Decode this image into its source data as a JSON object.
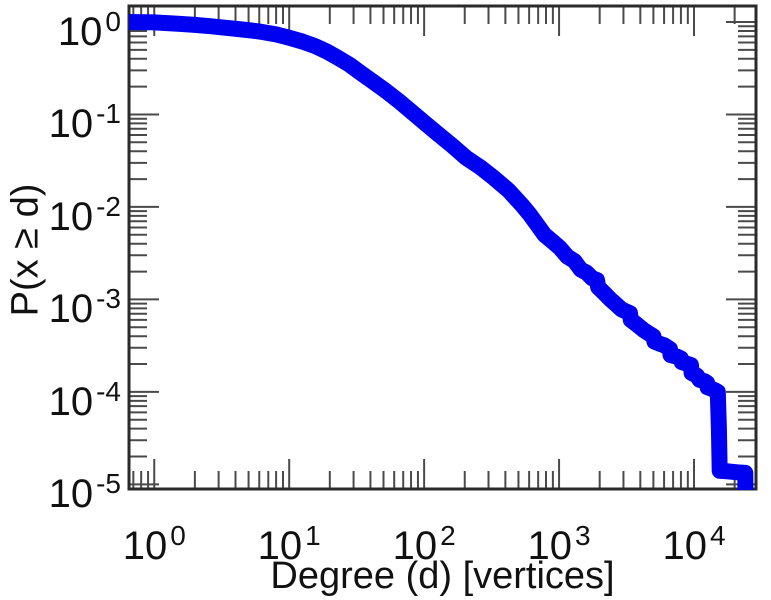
{
  "figure_title": "",
  "style": {
    "background": "#ffffff",
    "curve_color": "#0101f2",
    "frame_color": "#2a2a2a",
    "tick_color": "#4a4a4a",
    "text_color": "#111111"
  },
  "chart_data": {
    "type": "line",
    "title": "",
    "xlabel": "Degree (d) [vertices]",
    "ylabel": "P(x ≥ d)",
    "xscale": "log",
    "yscale": "log",
    "xlim": [
      0.65,
      28800
    ],
    "ylim": [
      8.9e-06,
      1.49
    ],
    "grid": false,
    "legend": false,
    "x_ticks": {
      "base": "10",
      "exponents": [
        0,
        1,
        2,
        3,
        4
      ],
      "values": [
        1,
        10,
        100,
        1000,
        10000
      ]
    },
    "y_ticks": {
      "base": "10",
      "exponents": [
        0,
        -1,
        -2,
        -3,
        -4,
        -5
      ],
      "values": [
        1,
        0.1,
        0.01,
        0.001,
        0.0001,
        1e-05
      ]
    },
    "series": [
      {
        "name": "degree-ccdf",
        "description": "Complementary cumulative distribution of vertex degree, P(x >= d), heavy-tailed power-law shape",
        "color": "#0101f2",
        "line_width": 16,
        "points": [
          [
            0.65,
            1.0
          ],
          [
            1,
            0.99
          ],
          [
            1.5,
            0.96
          ],
          [
            2,
            0.93
          ],
          [
            2.6,
            0.9
          ],
          [
            3.4,
            0.865
          ],
          [
            4.5,
            0.83
          ],
          [
            6,
            0.79
          ],
          [
            8,
            0.735
          ],
          [
            10,
            0.675
          ],
          [
            12.5,
            0.615
          ],
          [
            15.5,
            0.55
          ],
          [
            19,
            0.48
          ],
          [
            23,
            0.41
          ],
          [
            28,
            0.345
          ],
          [
            34,
            0.28
          ],
          [
            42,
            0.225
          ],
          [
            52,
            0.18
          ],
          [
            64,
            0.142
          ],
          [
            80,
            0.108
          ],
          [
            100,
            0.082
          ],
          [
            125,
            0.0625
          ],
          [
            160,
            0.0465
          ],
          [
            205,
            0.034
          ],
          [
            260,
            0.027
          ],
          [
            330,
            0.0205
          ],
          [
            420,
            0.0152
          ],
          [
            530,
            0.0105
          ],
          [
            610,
            0.0082
          ],
          [
            700,
            0.0062
          ],
          [
            780,
            0.005
          ],
          [
            900,
            0.0042
          ],
          [
            1016,
            0.0036
          ],
          [
            1150,
            0.0029
          ],
          [
            1300,
            0.0026
          ],
          [
            1450,
            0.0021
          ],
          [
            1600,
            0.00195
          ],
          [
            1750,
            0.0017
          ],
          [
            1910,
            0.00162
          ],
          [
            1950,
            0.00135
          ],
          [
            2150,
            0.00118
          ],
          [
            2400,
            0.001
          ],
          [
            2650,
            0.00088
          ],
          [
            2900,
            0.00078
          ],
          [
            3355,
            0.00071
          ],
          [
            3400,
            0.0006
          ],
          [
            3800,
            0.00053
          ],
          [
            4200,
            0.00047
          ],
          [
            4600,
            0.00043
          ],
          [
            5000,
            0.0004
          ],
          [
            5100,
            0.00035
          ],
          [
            5600,
            0.00033
          ],
          [
            6000,
            0.00032
          ],
          [
            6640,
            0.00029
          ],
          [
            6700,
            0.00025
          ],
          [
            7500,
            0.00024
          ],
          [
            8000,
            0.00023
          ],
          [
            8100,
            0.00021
          ],
          [
            9000,
            0.0002
          ],
          [
            9500,
            0.000195
          ],
          [
            9600,
            0.00016
          ],
          [
            10500,
            0.00015
          ],
          [
            11000,
            0.000135
          ],
          [
            12000,
            0.00013
          ],
          [
            12500,
            0.000125
          ],
          [
            12600,
            0.000112
          ],
          [
            13500,
            0.000108
          ],
          [
            14500,
            0.000103
          ],
          [
            15000,
            0.0001
          ],
          [
            15300,
            4e-05
          ],
          [
            15500,
            1.4e-05
          ],
          [
            18000,
            1.38e-05
          ],
          [
            21000,
            1.35e-05
          ],
          [
            24000,
            1.33e-05
          ],
          [
            24100,
            5e-06
          ]
        ]
      }
    ]
  }
}
